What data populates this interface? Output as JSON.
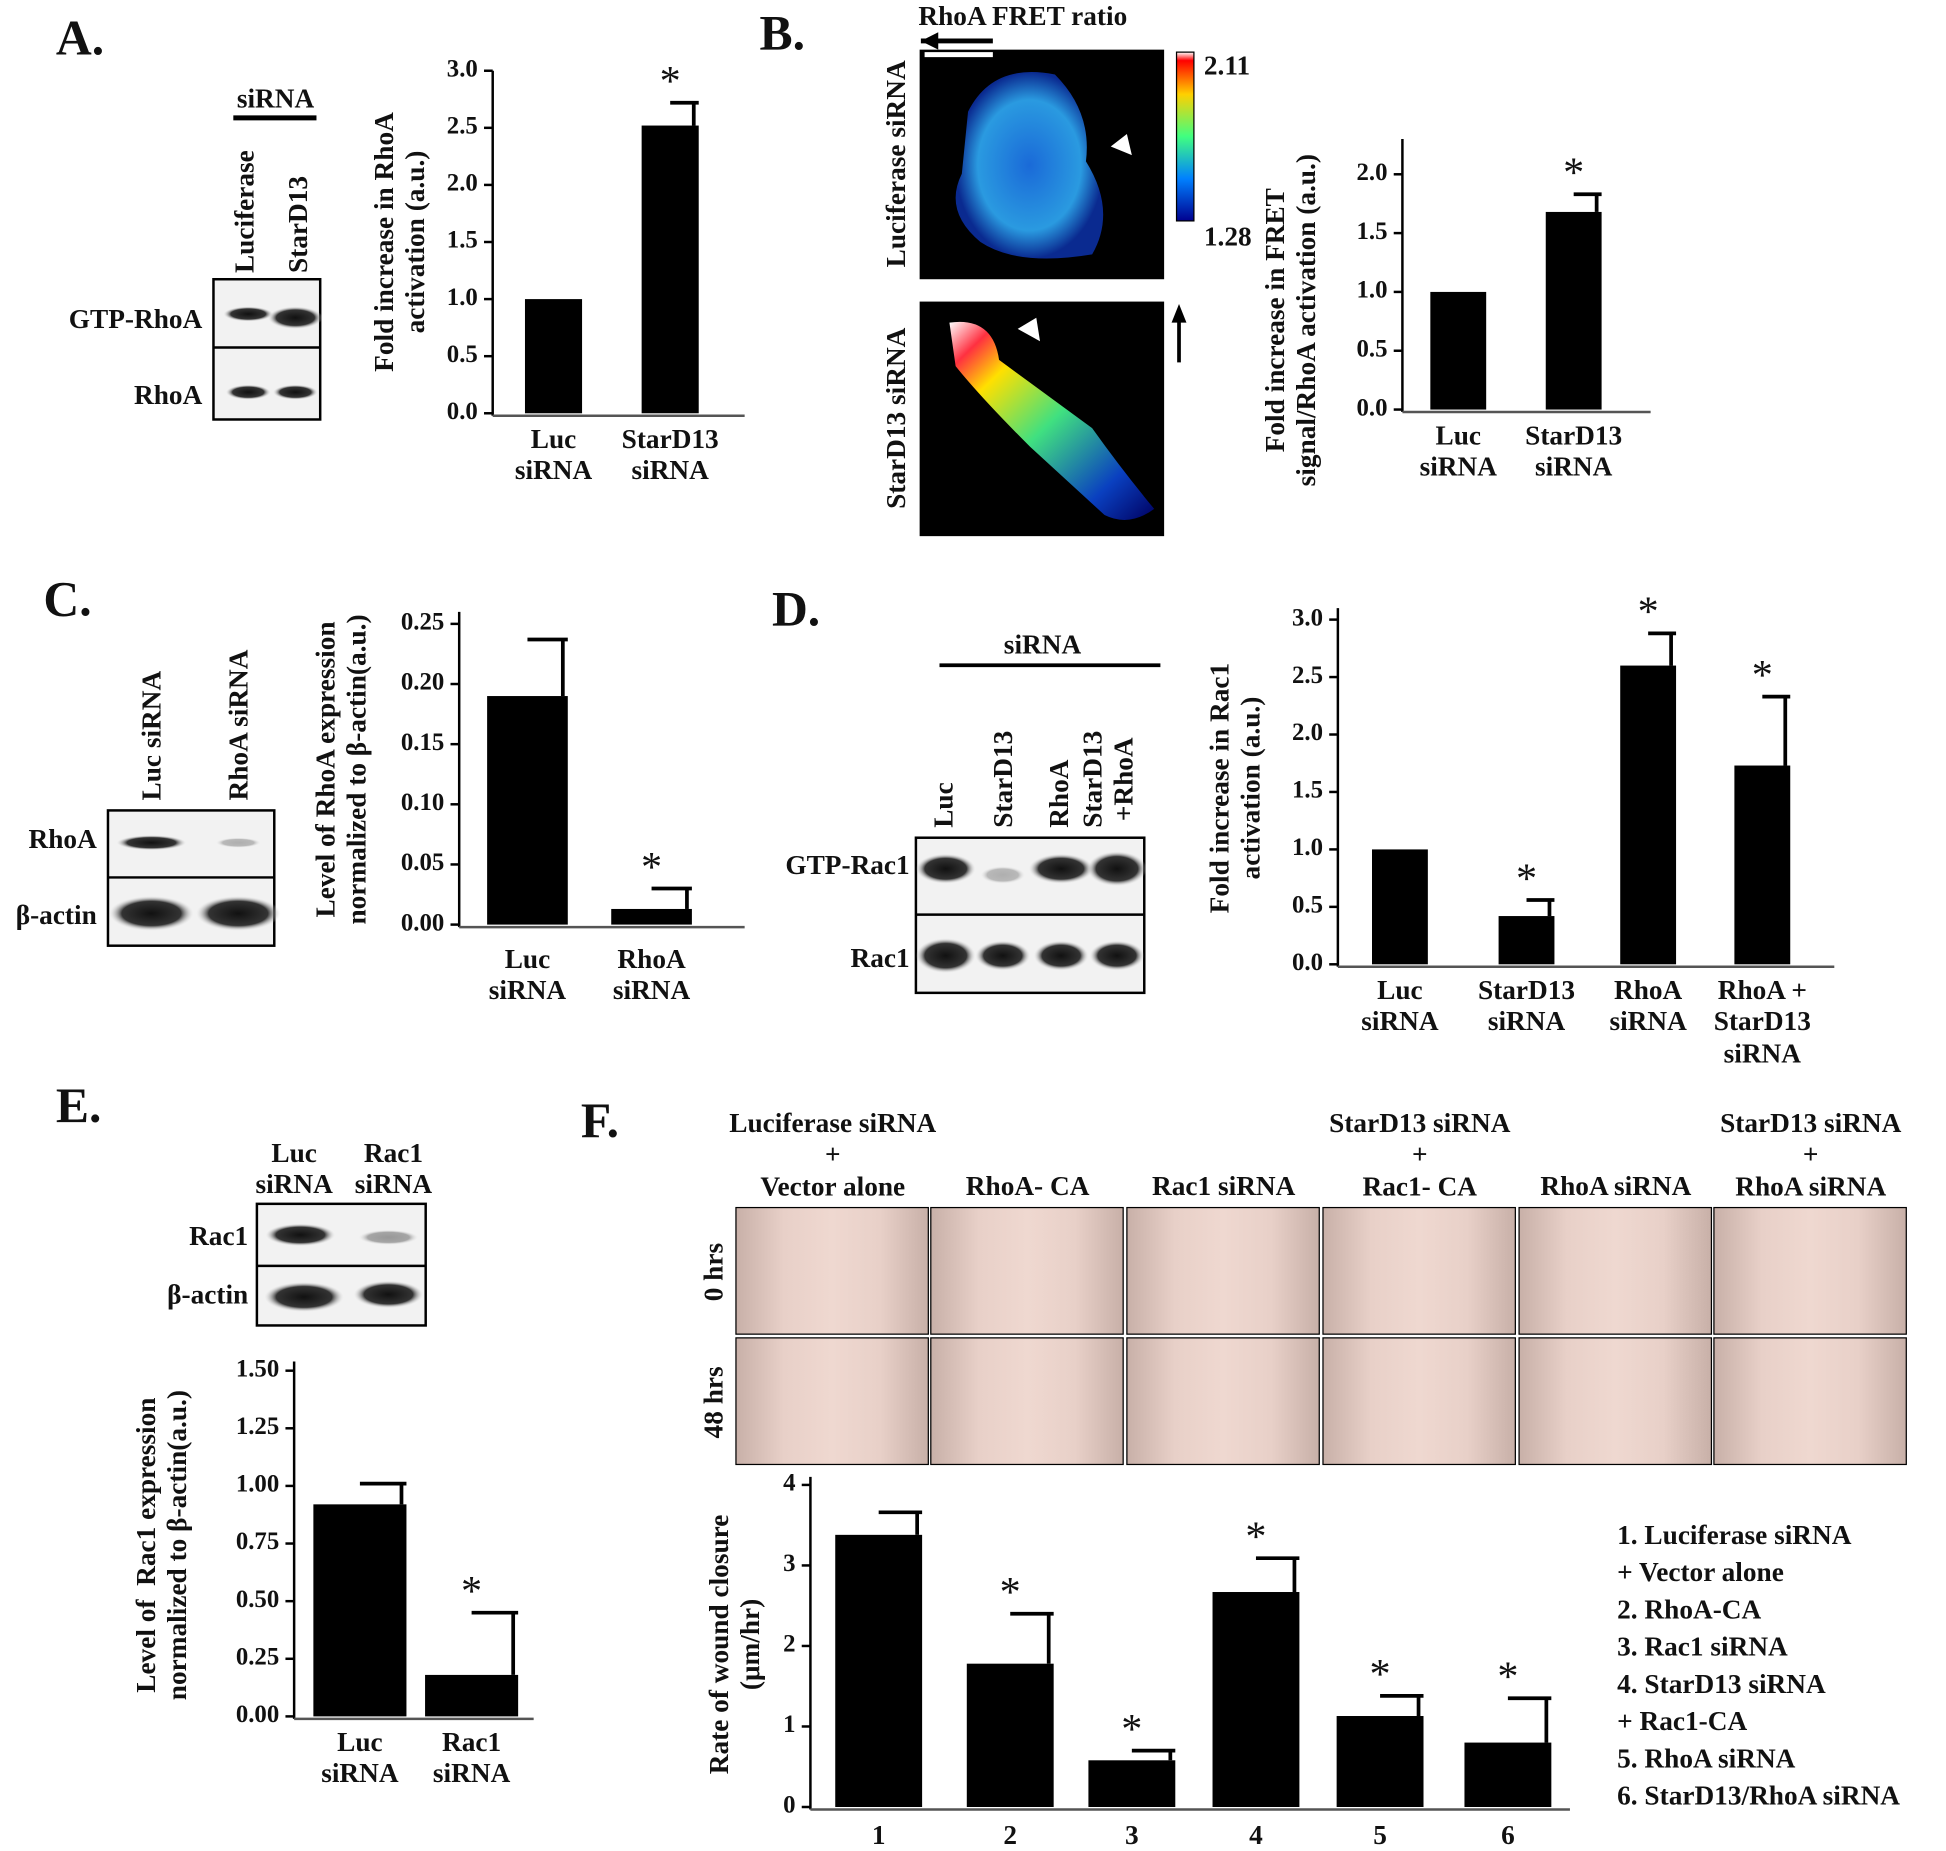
{
  "chart_data": [
    {
      "type": "bar",
      "y_label": "Fold increase in RhoA\nactivation (a.u.)",
      "categories": [
        "Luc\nsiRNA",
        "StarD13\nsiRNA"
      ],
      "values": [
        1.0,
        2.52
      ],
      "errors": [
        0,
        0.2
      ],
      "significance": [
        null,
        "*"
      ],
      "color": "#000000",
      "ylim": [
        0,
        3
      ],
      "yticks": [
        {
          "value": 0,
          "label": "0.0"
        },
        0.5,
        {
          "value": 1,
          "label": "1.0"
        },
        1.5,
        {
          "value": 2,
          "label": "2.0"
        },
        2.5,
        {
          "value": 3,
          "label": "3.0"
        }
      ]
    },
    {
      "type": "bar",
      "y_label": "Fold increase in FRET\nsignal/RhoA activation (a.u.)",
      "categories": [
        "Luc\nsiRNA",
        "StarD13\nsiRNA"
      ],
      "values": [
        1.0,
        1.68
      ],
      "errors": [
        0,
        0.15
      ],
      "significance": [
        null,
        "*"
      ],
      "color": "#000000",
      "ylim": [
        0,
        2.3
      ],
      "yticks": [
        {
          "value": 0,
          "label": "0.0"
        },
        0.5,
        {
          "value": 1,
          "label": "1.0"
        },
        1.5,
        {
          "value": 2,
          "label": "2.0"
        }
      ]
    },
    {
      "type": "bar",
      "y_label": "Level of RhoA expression\nnormalized to β-actin(a.u.)",
      "categories": [
        "Luc\nsiRNA",
        "RhoA\nsiRNA"
      ],
      "values": [
        0.19,
        0.013
      ],
      "errors": [
        0.047,
        0.017
      ],
      "significance": [
        null,
        "*"
      ],
      "color": "#000000",
      "ylim": [
        0,
        0.26
      ],
      "yticks": [
        {
          "value": 0,
          "label": "0.00"
        },
        0.05,
        {
          "value": 0.1,
          "label": "0.10"
        },
        0.15,
        {
          "value": 0.2,
          "label": "0.20"
        },
        0.25
      ]
    },
    {
      "type": "bar",
      "y_label": "Fold increase in Rac1\nactivation (a.u.)",
      "categories": [
        "Luc\nsiRNA",
        "StarD13\nsiRNA",
        "RhoA\nsiRNA",
        "RhoA +\nStarD13\nsiRNA"
      ],
      "values": [
        1.0,
        0.42,
        2.6,
        1.73
      ],
      "errors": [
        0,
        0.14,
        0.28,
        0.6
      ],
      "significance": [
        null,
        "*",
        "*",
        "*"
      ],
      "color": "#000000",
      "ylim": [
        0,
        3.1
      ],
      "yticks": [
        {
          "value": 0,
          "label": "0.0"
        },
        0.5,
        {
          "value": 1,
          "label": "1.0"
        },
        1.5,
        {
          "value": 2,
          "label": "2.0"
        },
        2.5,
        {
          "value": 3,
          "label": "3.0"
        }
      ]
    },
    {
      "type": "bar",
      "y_label": "Level of  Rac1 expression\nnormalized to β-actin(a.u.)",
      "categories": [
        "Luc\nsiRNA",
        "Rac1\nsiRNA"
      ],
      "values": [
        0.92,
        0.18
      ],
      "errors": [
        0.09,
        0.27
      ],
      "significance": [
        null,
        "*"
      ],
      "color": "#000000",
      "ylim": [
        0,
        1.54
      ],
      "yticks": [
        {
          "value": 0,
          "label": "0.00"
        },
        0.25,
        {
          "value": 0.5,
          "label": "0.50"
        },
        0.75,
        {
          "value": 1,
          "label": "1.00"
        },
        1.25,
        {
          "value": 1.5,
          "label": "1.50"
        }
      ]
    },
    {
      "type": "bar",
      "y_label": "Rate of wound closure\n(μm/hr)",
      "categories": [
        "1",
        "2",
        "3",
        "4",
        "5",
        "6"
      ],
      "values": [
        3.38,
        1.78,
        0.58,
        2.67,
        1.13,
        0.8
      ],
      "errors": [
        0.28,
        0.62,
        0.12,
        0.42,
        0.25,
        0.55
      ],
      "significance": [
        null,
        "*",
        "*",
        "*",
        "*",
        "*"
      ],
      "color": "#000000",
      "ylim": [
        0,
        4.1
      ],
      "yticks": [
        0,
        1,
        2,
        3,
        4
      ],
      "descriptions": [
        "1. Luciferase siRNA\n+ Vector alone",
        "2. RhoA-CA",
        "3. Rac1 siRNA",
        "4. StarD13 siRNA\n+ Rac1-CA",
        "5. RhoA siRNA",
        "6. StarD13/RhoA siRNA"
      ]
    }
  ],
  "figure": {
    "panels": [
      "A.",
      "B.",
      "C.",
      "D.",
      "E.",
      "F."
    ],
    "blot_a": {
      "group": "siRNA",
      "lanes": [
        "Luciferase",
        "StarD13"
      ],
      "rows": [
        "GTP-RhoA",
        "RhoA"
      ]
    },
    "blot_c": {
      "lanes": [
        "Luc siRNA",
        "RhoA siRNA"
      ],
      "rows": [
        "RhoA",
        "β-actin"
      ]
    },
    "blot_d": {
      "group": "siRNA",
      "lanes": [
        "Luc",
        "StarD13",
        "RhoA",
        "StarD13\n+RhoA"
      ],
      "rows": [
        "GTP-Rac1",
        "Rac1"
      ]
    },
    "blot_e": {
      "lanes": [
        "Luc\nsiRNA",
        "Rac1\nsiRNA"
      ],
      "rows": [
        "Rac1",
        "β-actin"
      ]
    },
    "fret": {
      "title": "RhoA FRET ratio",
      "max": 2.11,
      "min": 1.28,
      "rows": [
        "Luciferase siRNA",
        "StarD13 siRNA"
      ]
    },
    "wound": {
      "columns": [
        "Luciferase siRNA\n+\nVector alone",
        "RhoA- CA",
        "Rac1 siRNA",
        "StarD13 siRNA\n+\nRac1- CA",
        "RhoA siRNA",
        "StarD13 siRNA\n+\nRhoA siRNA"
      ],
      "rows": [
        "0 hrs",
        "48 hrs"
      ]
    }
  }
}
